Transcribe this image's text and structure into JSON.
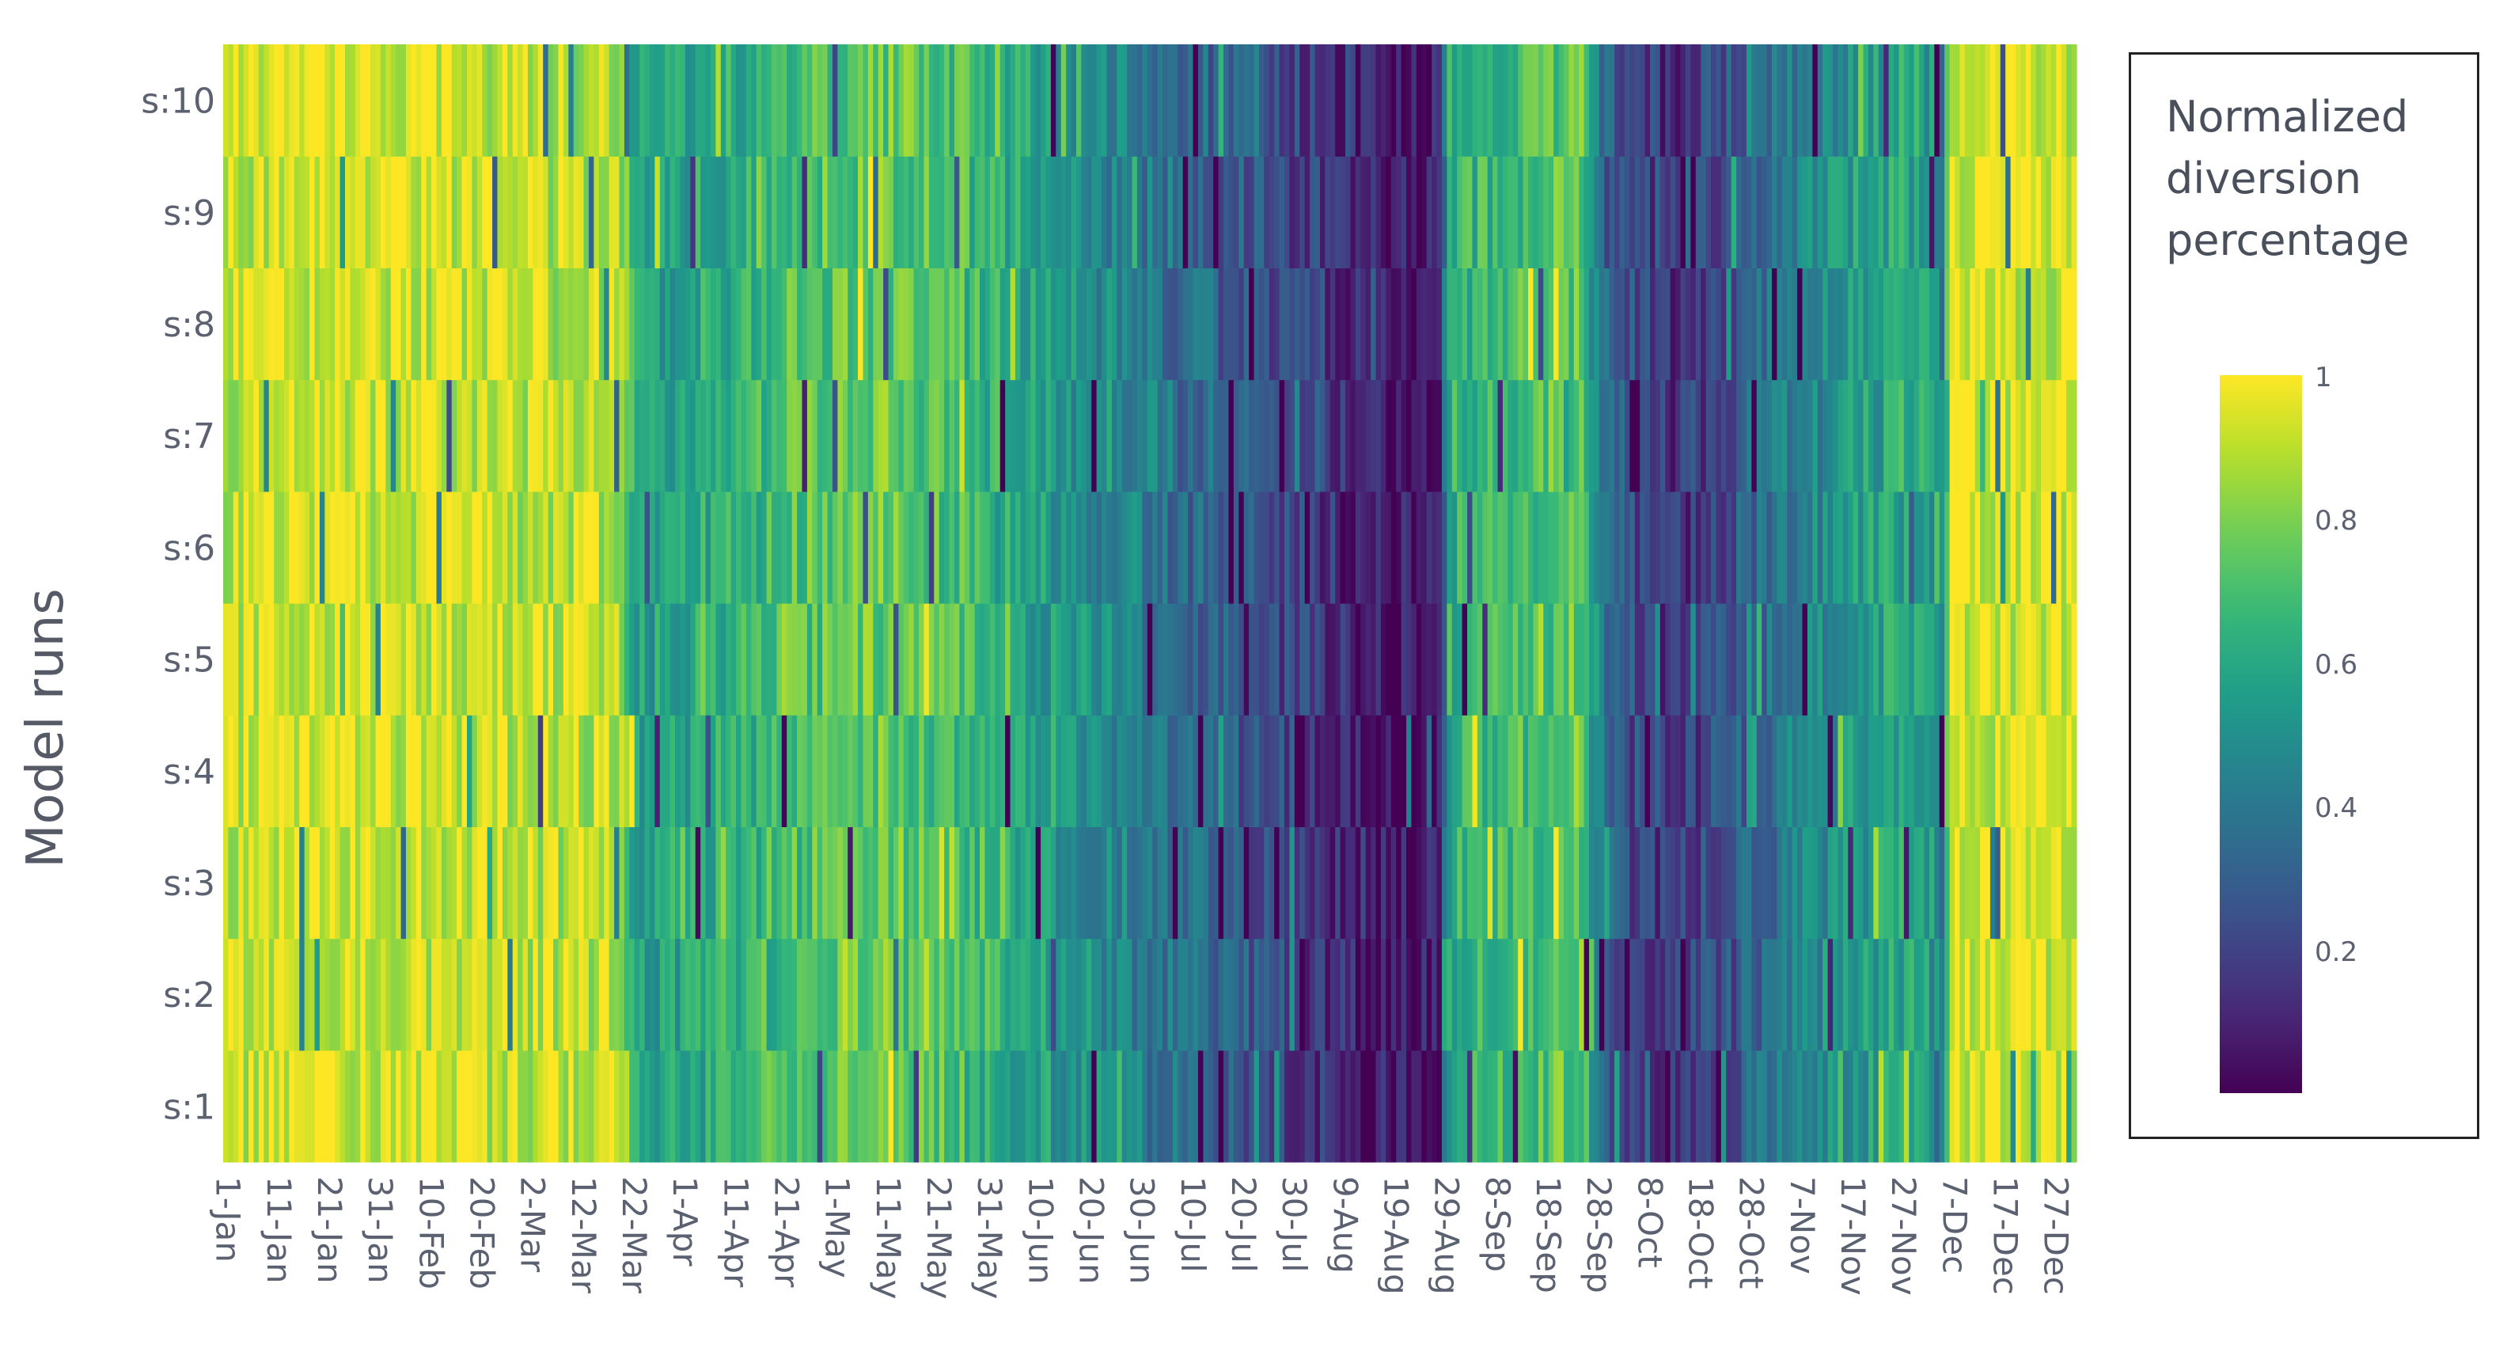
{
  "chart_data": {
    "type": "heatmap",
    "title": "",
    "xlabel": "",
    "ylabel": "Model runs",
    "rows": [
      "s:1",
      "s:2",
      "s:3",
      "s:4",
      "s:5",
      "s:6",
      "s:7",
      "s:8",
      "s:9",
      "s:10"
    ],
    "x_ticks": [
      "1-Jan",
      "11-Jan",
      "21-Jan",
      "31-Jan",
      "10-Feb",
      "20-Feb",
      "2-Mar",
      "12-Mar",
      "22-Mar",
      "1-Apr",
      "11-Apr",
      "21-Apr",
      "1-May",
      "11-May",
      "21-May",
      "31-May",
      "10-Jun",
      "20-Jun",
      "30-Jun",
      "10-Jul",
      "20-Jul",
      "30-Jul",
      "9-Aug",
      "19-Aug",
      "29-Aug",
      "8-Sep",
      "18-Sep",
      "28-Sep",
      "8-Oct",
      "18-Oct",
      "28-Oct",
      "7-Nov",
      "17-Nov",
      "27-Nov",
      "7-Dec",
      "17-Dec",
      "27-Dec"
    ],
    "n_days": 365,
    "zlim": [
      0,
      1
    ],
    "colorscale": "viridis",
    "colorbar": {
      "title": [
        "Normalized",
        "diversion",
        "percentage"
      ],
      "ticks": [
        "0.2",
        "0.4",
        "0.6",
        "0.8",
        "1"
      ],
      "tick_values": [
        0.2,
        0.4,
        0.6,
        0.8,
        1.0
      ]
    },
    "seasonal_profile_day_value": [
      [
        1,
        0.92
      ],
      [
        20,
        0.95
      ],
      [
        40,
        0.93
      ],
      [
        60,
        0.9
      ],
      [
        79,
        0.88
      ],
      [
        82,
        0.56
      ],
      [
        100,
        0.62
      ],
      [
        115,
        0.72
      ],
      [
        130,
        0.76
      ],
      [
        145,
        0.7
      ],
      [
        155,
        0.6
      ],
      [
        170,
        0.5
      ],
      [
        190,
        0.36
      ],
      [
        205,
        0.25
      ],
      [
        220,
        0.14
      ],
      [
        232,
        0.05
      ],
      [
        240,
        0.06
      ],
      [
        242,
        0.62
      ],
      [
        255,
        0.7
      ],
      [
        268,
        0.75
      ],
      [
        273,
        0.3
      ],
      [
        285,
        0.14
      ],
      [
        295,
        0.22
      ],
      [
        308,
        0.42
      ],
      [
        322,
        0.55
      ],
      [
        335,
        0.6
      ],
      [
        339,
        0.45
      ],
      [
        341,
        0.95
      ],
      [
        365,
        0.93
      ]
    ]
  }
}
